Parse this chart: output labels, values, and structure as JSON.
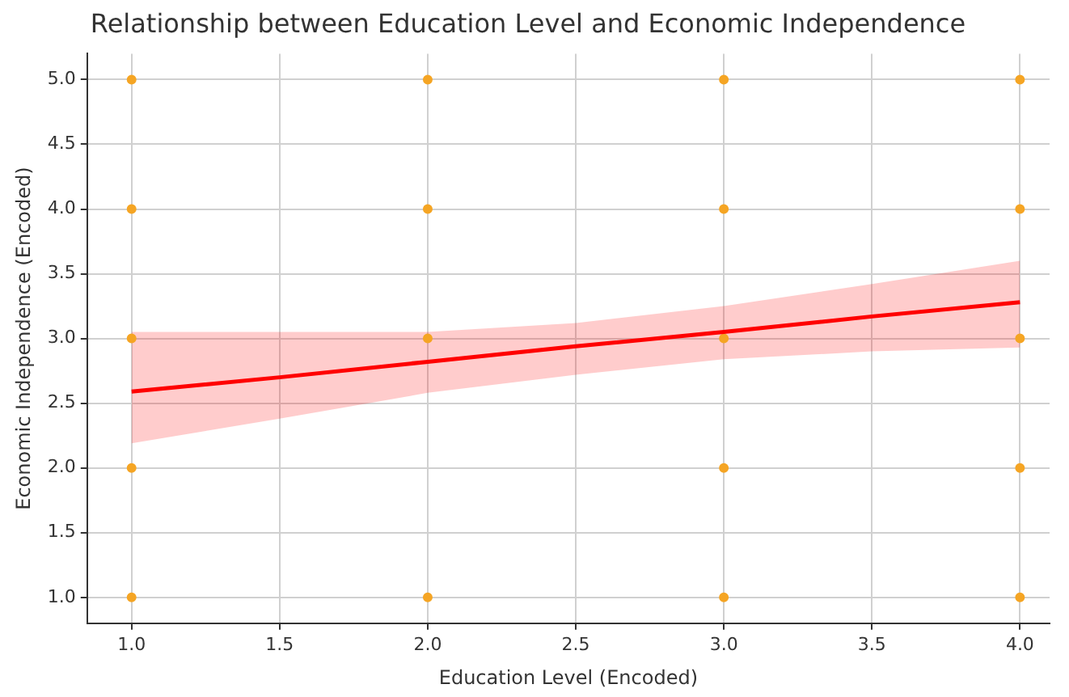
{
  "chart_data": {
    "type": "scatter",
    "title": "Relationship between Education Level and Economic Independence",
    "xlabel": "Education Level (Encoded)",
    "ylabel": "Economic Independence (Encoded)",
    "xlim": [
      0.85,
      4.1
    ],
    "ylim": [
      0.8,
      5.2
    ],
    "xticks": [
      {
        "value": 1,
        "label": "1.0"
      },
      {
        "value": 1.5,
        "label": "1.5"
      },
      {
        "value": 2,
        "label": "2.0"
      },
      {
        "value": 2.5,
        "label": "2.5"
      },
      {
        "value": 3,
        "label": "3.0"
      },
      {
        "value": 3.5,
        "label": "3.5"
      },
      {
        "value": 4,
        "label": "4.0"
      }
    ],
    "yticks": [
      {
        "value": 1,
        "label": "1.0"
      },
      {
        "value": 1.5,
        "label": "1.5"
      },
      {
        "value": 2,
        "label": "2.0"
      },
      {
        "value": 2.5,
        "label": "2.5"
      },
      {
        "value": 3,
        "label": "3.0"
      },
      {
        "value": 3.5,
        "label": "3.5"
      },
      {
        "value": 4,
        "label": "4.0"
      },
      {
        "value": 4.5,
        "label": "4.5"
      },
      {
        "value": 5,
        "label": "5.0"
      }
    ],
    "grid": true,
    "series": [
      {
        "marker": "circle",
        "color": "#f5a524",
        "x": [
          1,
          1,
          1,
          1,
          1,
          2,
          2,
          2,
          2,
          3,
          3,
          3,
          3,
          3,
          4,
          4,
          4,
          4,
          4
        ],
        "values": [
          5,
          4,
          3,
          2,
          1,
          5,
          4,
          3,
          1,
          5,
          4,
          3,
          2,
          1,
          5,
          4,
          3,
          2,
          1
        ]
      },
      {
        "type": "line",
        "marker": "none",
        "color": "#ff0000",
        "x": [
          1,
          1.5,
          2,
          2.5,
          3,
          3.5,
          4
        ],
        "values": [
          2.59,
          2.7,
          2.82,
          2.94,
          3.05,
          3.17,
          3.28
        ],
        "lower": [
          2.19,
          2.38,
          2.58,
          2.72,
          2.84,
          2.9,
          2.93
        ],
        "upper": [
          3.05,
          3.05,
          3.05,
          3.12,
          3.25,
          3.42,
          3.6
        ]
      }
    ]
  }
}
